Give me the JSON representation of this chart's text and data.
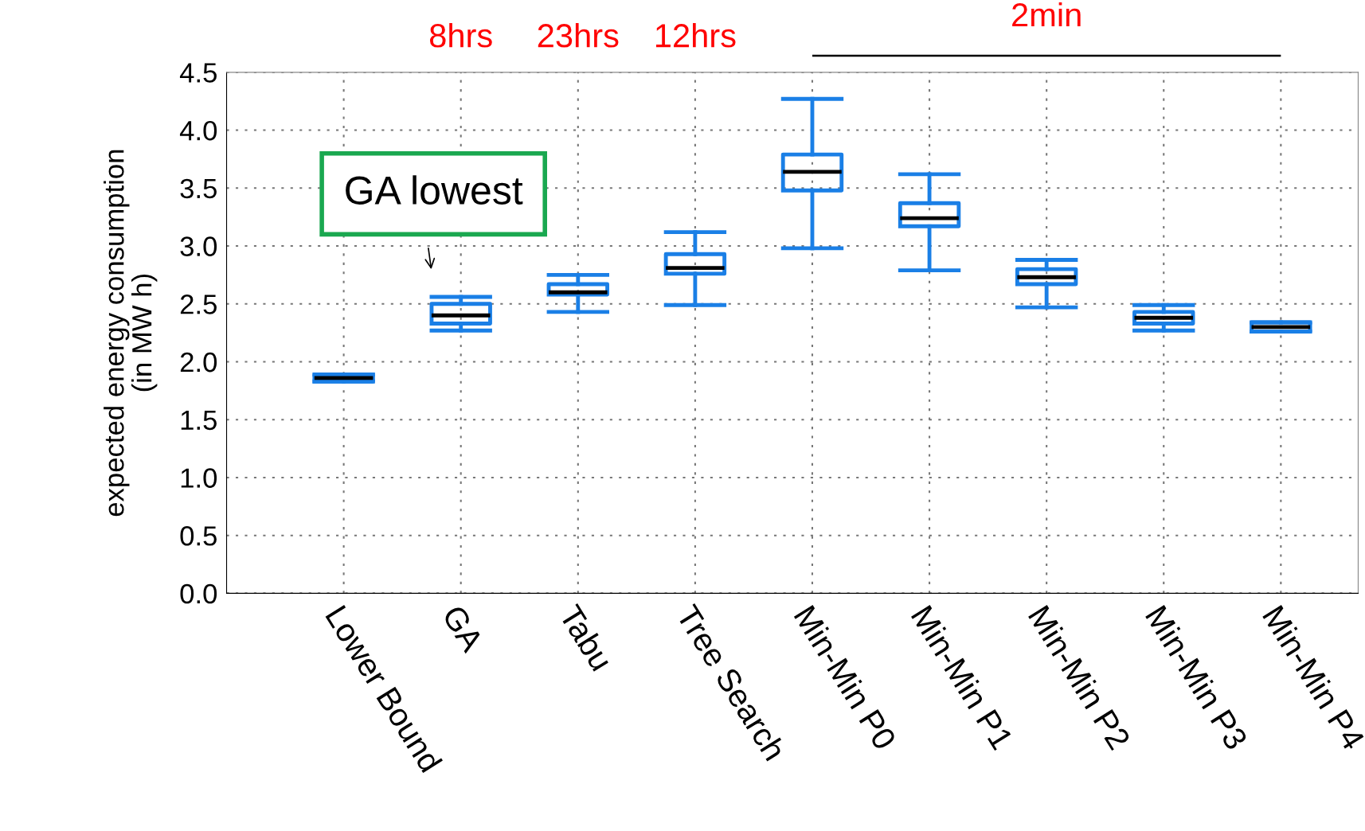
{
  "chart_data": {
    "type": "box",
    "ylabel": "expected energy consumption\n(in MW h)",
    "categories": [
      "Lower Bound",
      "GA",
      "Tabu",
      "Tree Search",
      "Min-Min P0",
      "Min-Min P1",
      "Min-Min P2",
      "Min-Min P3",
      "Min-Min P4"
    ],
    "color": "#1a7fe6",
    "boxes": [
      {
        "low": 1.83,
        "q1": 1.83,
        "median": 1.86,
        "q3": 1.89,
        "high": 1.89
      },
      {
        "low": 2.27,
        "q1": 2.33,
        "median": 2.4,
        "q3": 2.5,
        "high": 2.56
      },
      {
        "low": 2.43,
        "q1": 2.58,
        "median": 2.6,
        "q3": 2.67,
        "high": 2.75
      },
      {
        "low": 2.49,
        "q1": 2.76,
        "median": 2.81,
        "q3": 2.93,
        "high": 3.12
      },
      {
        "low": 2.98,
        "q1": 3.48,
        "median": 3.64,
        "q3": 3.79,
        "high": 4.27
      },
      {
        "low": 2.79,
        "q1": 3.17,
        "median": 3.24,
        "q3": 3.37,
        "high": 3.62
      },
      {
        "low": 2.47,
        "q1": 2.67,
        "median": 2.73,
        "q3": 2.8,
        "high": 2.88
      },
      {
        "low": 2.27,
        "q1": 2.33,
        "median": 2.38,
        "q3": 2.43,
        "high": 2.49
      },
      {
        "low": 2.26,
        "q1": 2.26,
        "median": 2.3,
        "q3": 2.34,
        "high": 2.34
      }
    ],
    "ylim": [
      0,
      4.5
    ],
    "yticks": [
      {
        "value": 0,
        "label": "0.0"
      },
      {
        "value": 0.5,
        "label": "0.5"
      },
      {
        "value": 1,
        "label": "1.0"
      },
      {
        "value": 1.5,
        "label": "1.5"
      },
      {
        "value": 2,
        "label": "2.0"
      },
      {
        "value": 2.5,
        "label": "2.5"
      },
      {
        "value": 3,
        "label": "3.0"
      },
      {
        "value": 3.5,
        "label": "3.5"
      },
      {
        "value": 4,
        "label": "4.0"
      },
      {
        "value": 4.5,
        "label": "4.5"
      }
    ],
    "grid": true,
    "annotations": [
      "8hrs",
      "23hrs",
      "12hrs",
      "2min",
      {
        "text": "GA lowest",
        "x": "GA",
        "y": 2.56
      }
    ]
  }
}
